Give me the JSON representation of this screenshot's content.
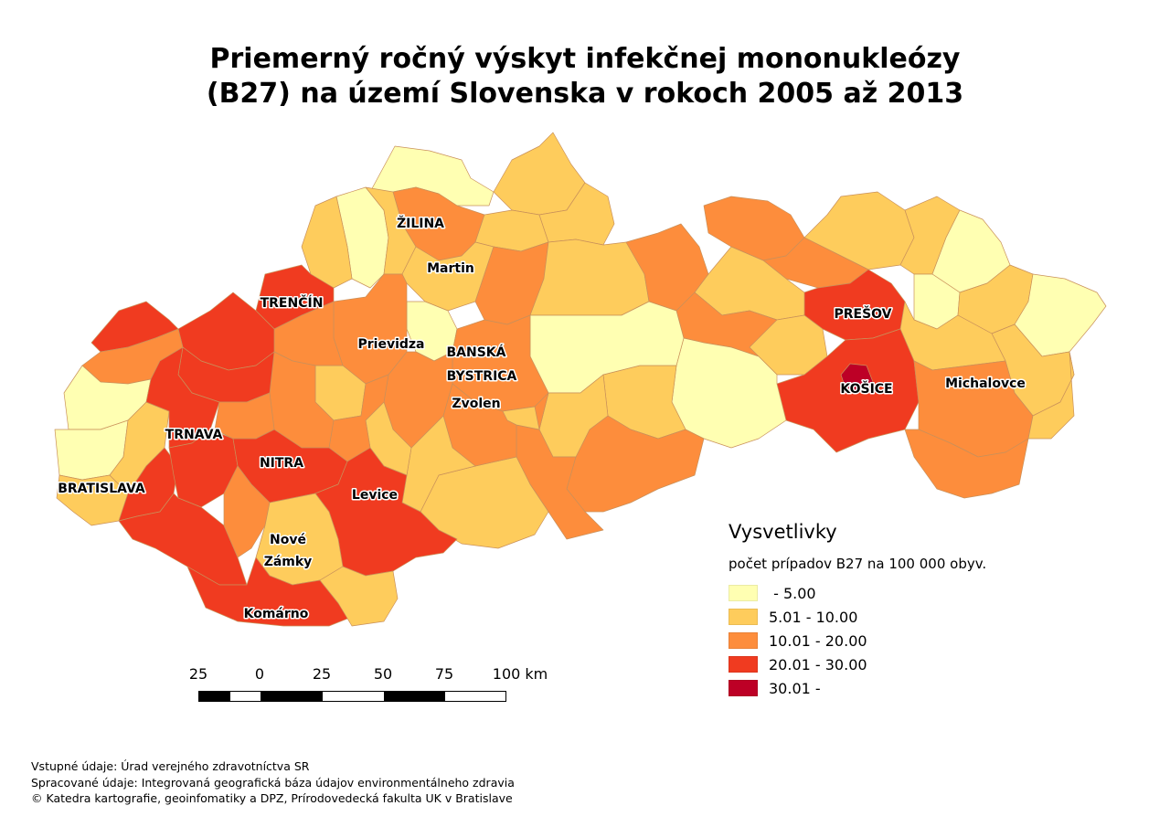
{
  "title": {
    "line1": "Priemerný ročný výskyt infekčnej mononukleózy",
    "line2": "(B27) na území Slovenska v rokoch 2005 až 2013"
  },
  "cities": {
    "zilina": "ŽILINA",
    "martin": "Martin",
    "trencin": "TRENČÍN",
    "prievidza": "Prievidza",
    "banska1": "BANSKÁ",
    "banska2": "BYSTRICA",
    "zvolen": "Zvolen",
    "presov": "PREŠOV",
    "kosice": "KOŠICE",
    "michalovce": "Michalovce",
    "trnava": "TRNAVA",
    "nitra": "NITRA",
    "levice": "Levice",
    "bratislava": "BRATISLAVA",
    "nz1": "Nové",
    "nz2": "Zámky",
    "komarno": "Komárno"
  },
  "legend": {
    "title": "Vysvetlivky",
    "subtitle": "počet prípadov B27 na 100 000 obyv.",
    "classes": [
      {
        "label": " - 5.00",
        "color": "#ffffb2"
      },
      {
        "label": "5.01 - 10.00",
        "color": "#fecc5c"
      },
      {
        "label": "10.01 - 20.00",
        "color": "#fd8d3c"
      },
      {
        "label": "20.01 - 30.00",
        "color": "#f03b20"
      },
      {
        "label": "30.01 - ",
        "color": "#bd0026"
      }
    ]
  },
  "scale": {
    "labels": [
      "25",
      "0",
      "25",
      "50",
      "75",
      "100 km"
    ]
  },
  "credits": {
    "line1": "Vstupné údaje: Úrad verejného zdravotníctva SR",
    "line2": "Spracované údaje: Integrovaná geografická báza údajov environmentálneho zdravia",
    "line3": "© Katedra kartografie, geoinfomatiky a DPZ, Prírodovedecká fakulta UK v Bratislave"
  }
}
